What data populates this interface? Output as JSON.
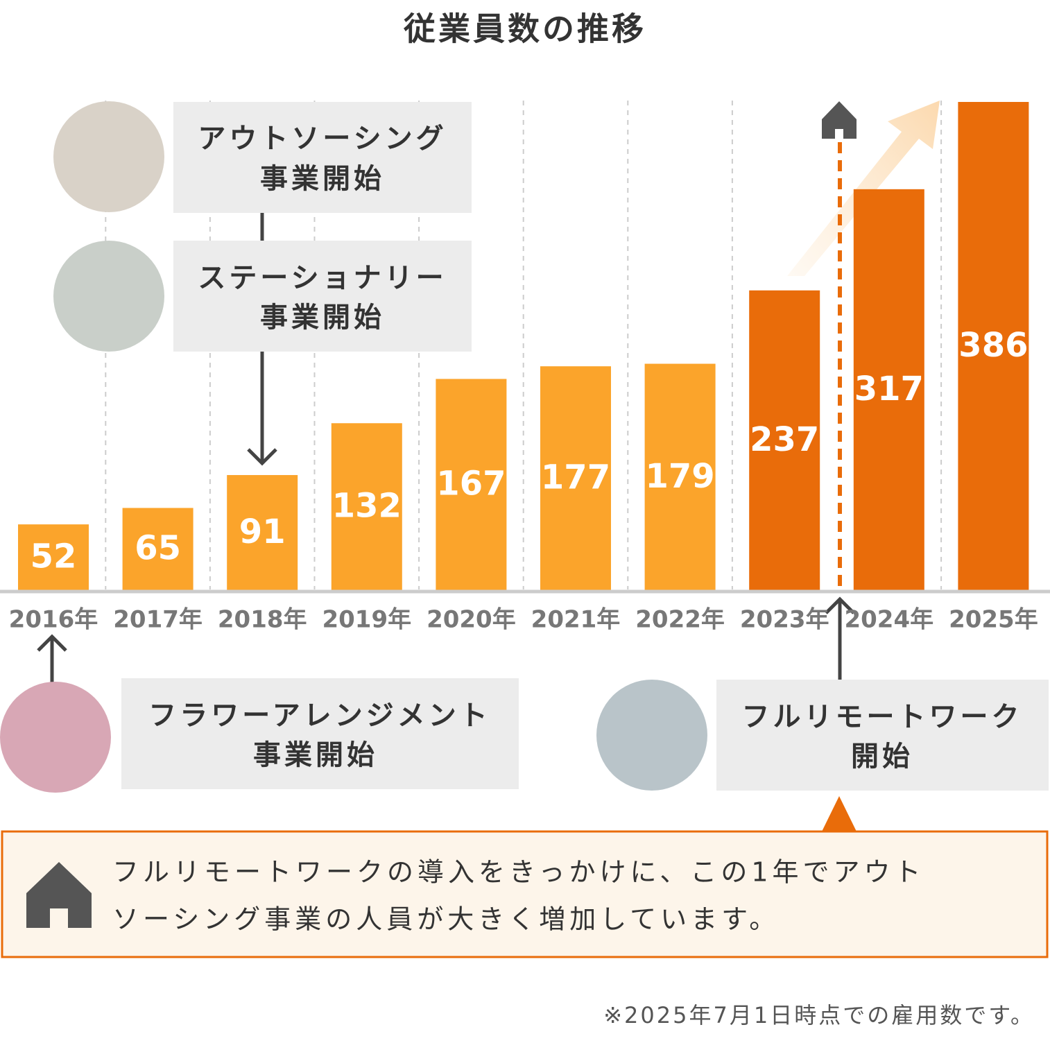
{
  "chart_data": {
    "type": "bar",
    "title": "従業員数の推移",
    "categories": [
      "2016年",
      "2017年",
      "2018年",
      "2019年",
      "2020年",
      "2021年",
      "2022年",
      "2023年",
      "2024年",
      "2025年"
    ],
    "values": [
      52,
      65,
      91,
      132,
      167,
      177,
      179,
      237,
      317,
      386
    ],
    "colors": [
      "#fba42b",
      "#fba42b",
      "#fba42b",
      "#fba42b",
      "#fba42b",
      "#fba42b",
      "#fba42b",
      "#e96c0a",
      "#e96c0a",
      "#e96c0a"
    ],
    "annotations": [
      {
        "lines": [
          "アウトソーシング",
          "事業開始"
        ]
      },
      {
        "lines": [
          "ステーショナリー",
          "事業開始"
        ]
      },
      {
        "lines": [
          "フラワーアレンジメント",
          "事業開始"
        ]
      },
      {
        "lines": [
          "フルリモートワーク",
          "開始"
        ]
      }
    ],
    "note": {
      "lines": [
        "フルリモートワークの導入をきっかけに、この1年でアウト",
        "ソーシング事業の人員が大きく増加しています。"
      ]
    },
    "footnote": "※2025年7月1日時点での雇用数です。"
  }
}
